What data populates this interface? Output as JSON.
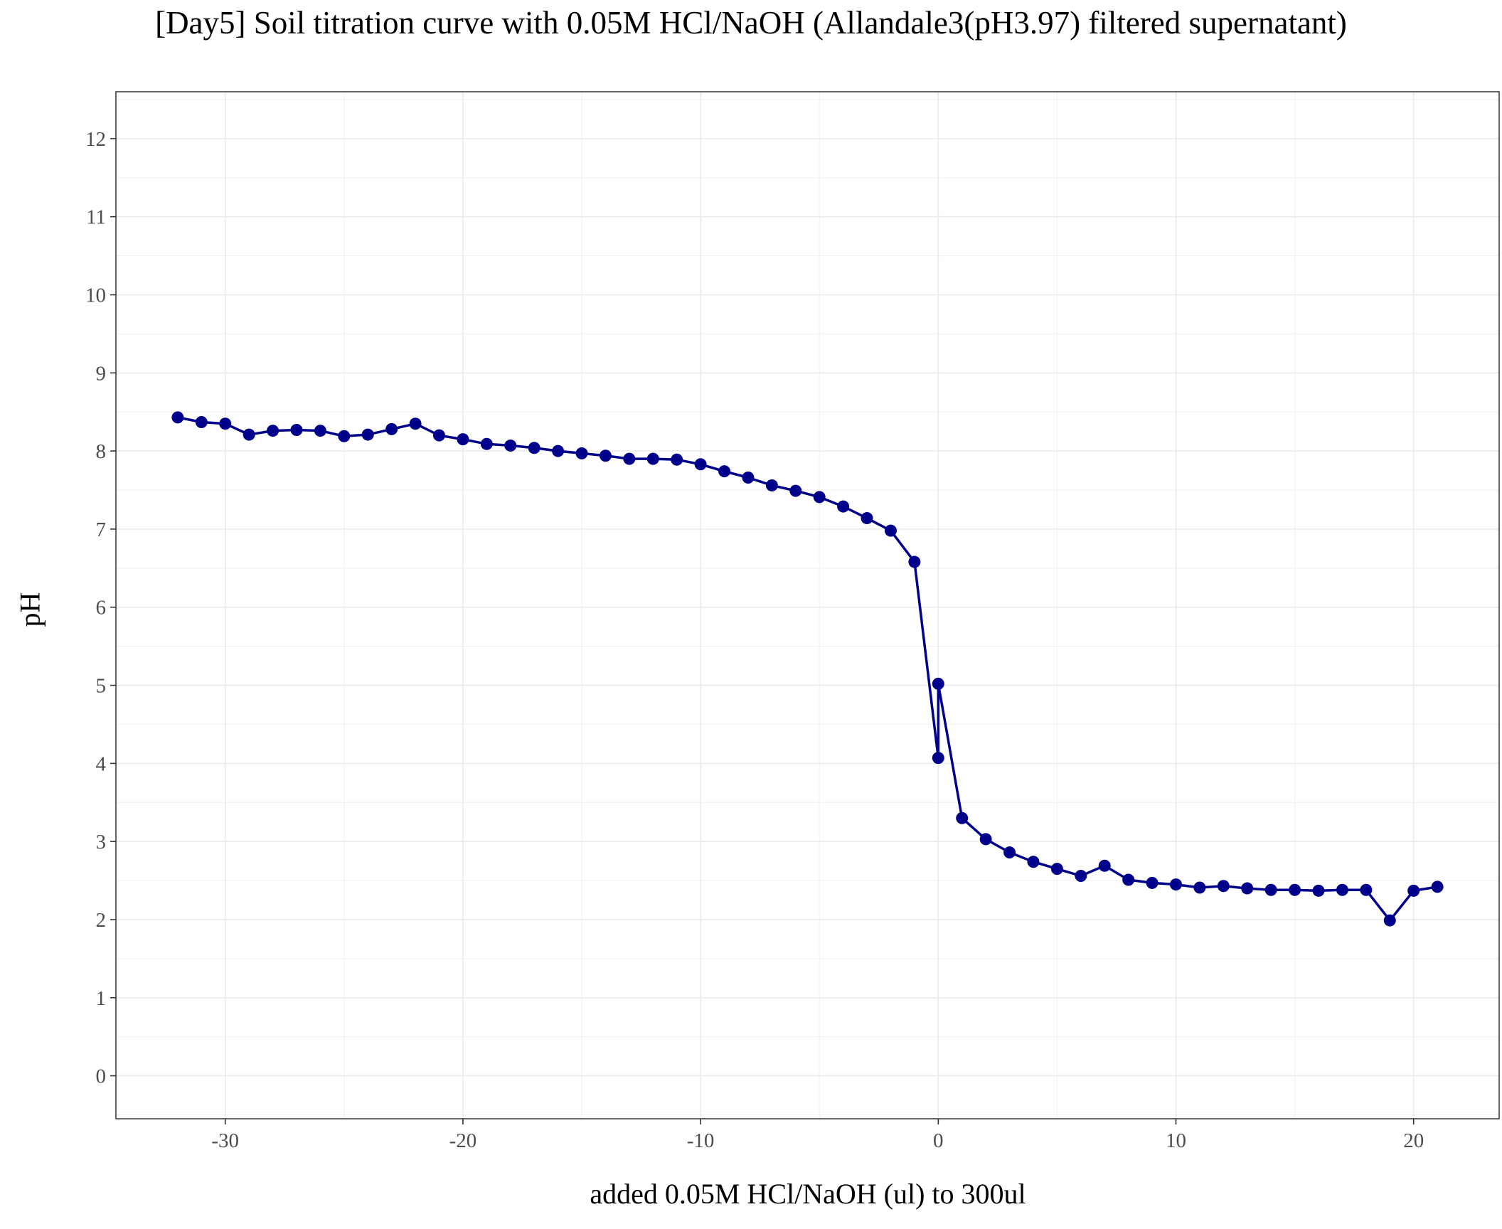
{
  "chart_data": {
    "type": "line",
    "title": "[Day5] Soil titration curve with 0.05M HCl/NaOH (Allandale3(pH3.97) filtered supernatant)",
    "xlabel": "added 0.05M HCl/NaOH (ul) to 300ul",
    "ylabel": "pH",
    "xlim": [
      -34.6,
      23.6
    ],
    "ylim": [
      -0.55,
      12.6
    ],
    "x_ticks": [
      -30,
      -20,
      -10,
      0,
      10,
      20
    ],
    "x_tick_labels": [
      "-30",
      "-20",
      "-10",
      "0",
      "10",
      "20"
    ],
    "y_ticks": [
      0,
      1,
      2,
      3,
      4,
      5,
      6,
      7,
      8,
      9,
      10,
      11,
      12
    ],
    "y_tick_labels": [
      "0",
      "1",
      "2",
      "3",
      "4",
      "5",
      "6",
      "7",
      "8",
      "9",
      "10",
      "11",
      "12"
    ],
    "grid": true,
    "legend": "none",
    "series": [
      {
        "color": "#00008B",
        "points": [
          [
            -32,
            8.43
          ],
          [
            -31,
            8.37
          ],
          [
            -30,
            8.35
          ],
          [
            -29,
            8.21
          ],
          [
            -28,
            8.26
          ],
          [
            -27,
            8.27
          ],
          [
            -26,
            8.26
          ],
          [
            -25,
            8.19
          ],
          [
            -24,
            8.21
          ],
          [
            -23,
            8.28
          ],
          [
            -22,
            8.35
          ],
          [
            -21,
            8.2
          ],
          [
            -20,
            8.15
          ],
          [
            -19,
            8.09
          ],
          [
            -18,
            8.07
          ],
          [
            -17,
            8.04
          ],
          [
            -16,
            8.0
          ],
          [
            -15,
            7.97
          ],
          [
            -14,
            7.94
          ],
          [
            -13,
            7.9
          ],
          [
            -12,
            7.9
          ],
          [
            -11,
            7.89
          ],
          [
            -10,
            7.83
          ],
          [
            -9,
            7.74
          ],
          [
            -8,
            7.66
          ],
          [
            -7,
            7.56
          ],
          [
            -6,
            7.49
          ],
          [
            -5,
            7.41
          ],
          [
            -4,
            7.29
          ],
          [
            -3,
            7.14
          ],
          [
            -2,
            6.98
          ],
          [
            -1,
            6.58
          ],
          [
            0,
            4.07
          ],
          [
            0,
            5.02
          ],
          [
            1,
            3.3
          ],
          [
            2,
            3.03
          ],
          [
            3,
            2.86
          ],
          [
            4,
            2.74
          ],
          [
            5,
            2.65
          ],
          [
            6,
            2.56
          ],
          [
            7,
            2.69
          ],
          [
            8,
            2.51
          ],
          [
            9,
            2.47
          ],
          [
            10,
            2.45
          ],
          [
            11,
            2.41
          ],
          [
            12,
            2.43
          ],
          [
            13,
            2.4
          ],
          [
            14,
            2.38
          ],
          [
            15,
            2.38
          ],
          [
            16,
            2.37
          ],
          [
            17,
            2.38
          ],
          [
            18,
            2.38
          ],
          [
            19,
            1.99
          ],
          [
            20,
            2.37
          ],
          [
            21,
            2.42
          ]
        ]
      }
    ]
  }
}
